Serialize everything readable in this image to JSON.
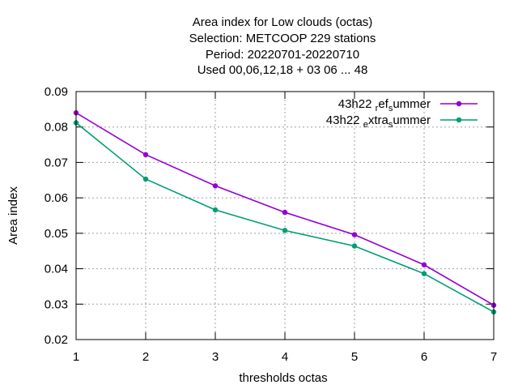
{
  "chart_data": {
    "type": "line",
    "title_lines": [
      "Area index  for Low clouds (octas)",
      "Selection: METCOOP    229 stations",
      "Period: 20220701-20220710",
      "Used  00,06,12,18  + 03 06 ... 48"
    ],
    "xlabel": "thresholds octas",
    "ylabel": "Area index",
    "x": [
      1,
      2,
      3,
      4,
      5,
      6,
      7
    ],
    "xlim": [
      1,
      7
    ],
    "ylim": [
      0.02,
      0.09
    ],
    "x_ticks": [
      "1",
      "2",
      "3",
      "4",
      "5",
      "6",
      "7"
    ],
    "y_ticks": [
      "0.02",
      "0.03",
      "0.04",
      "0.05",
      "0.06",
      "0.07",
      "0.08",
      "0.09"
    ],
    "grid": true,
    "legend_position": "top-right",
    "series": [
      {
        "name": "43h22 ref summer",
        "legend_parts": [
          "43h22 ",
          "r",
          "ef",
          "s",
          "ummer"
        ],
        "color": "#9400d3",
        "values": [
          0.084,
          0.0722,
          0.0634,
          0.0559,
          0.0496,
          0.0411,
          0.0297
        ]
      },
      {
        "name": "43h22 extra summer",
        "legend_parts": [
          "43h22 ",
          "e",
          "xtra",
          "s",
          "ummer"
        ],
        "color": "#009e73",
        "values": [
          0.0812,
          0.0653,
          0.0566,
          0.0508,
          0.0464,
          0.0386,
          0.0278
        ]
      }
    ]
  }
}
